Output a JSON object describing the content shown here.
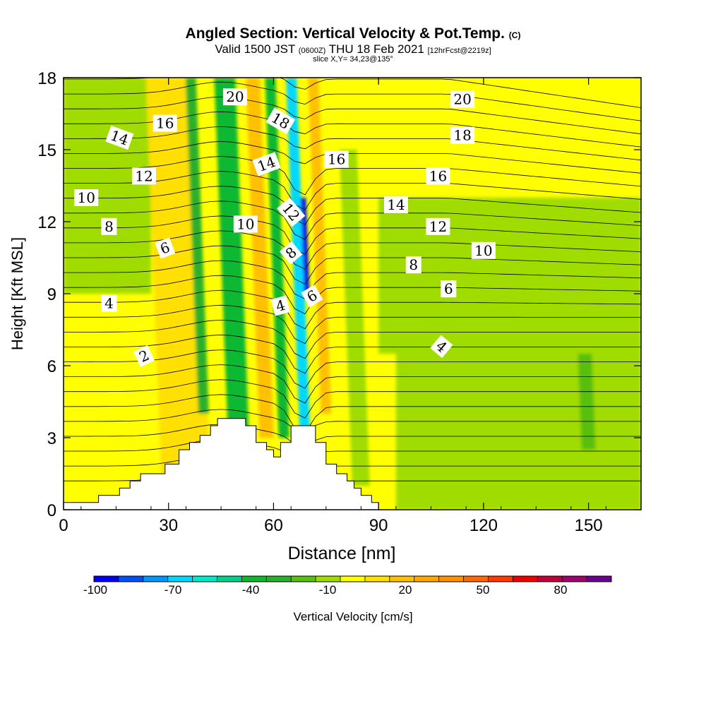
{
  "header": {
    "title": "Angled Section: Vertical Velocity & Pot.Temp.",
    "title_mark": "(C)",
    "valid_prefix": "Valid 1500 JST",
    "valid_utc": "(0600Z)",
    "valid_date": "THU 18 Feb 2021",
    "forecast": "[12hrFcst@2219z]",
    "slice": "slice X,Y= 34,23@135°"
  },
  "chart_data": {
    "type": "heatmap",
    "title": "Angled Section: Vertical Velocity & Pot.Temp.",
    "xlabel": "Distance [nm]",
    "ylabel": "Height [Kft MSL]",
    "xlim": [
      0,
      165
    ],
    "ylim": [
      0,
      18
    ],
    "xticks": [
      0,
      30,
      60,
      90,
      120,
      150
    ],
    "yticks": [
      0,
      3,
      6,
      9,
      12,
      15,
      18
    ],
    "colorbar": {
      "label": "Vertical Velocity [cm/s]",
      "tick_labels": [
        "-100",
        "-70",
        "-40",
        "-10",
        "20",
        "50",
        "80"
      ],
      "tick_values": [
        -100,
        -70,
        -40,
        -10,
        20,
        50,
        80
      ],
      "levels": [
        -100,
        -90,
        -80,
        -70,
        -60,
        -50,
        -40,
        -30,
        -20,
        -10,
        0,
        10,
        20,
        30,
        40,
        50,
        60,
        70,
        80,
        90,
        100
      ],
      "colors": [
        "#0000ee",
        "#0050f5",
        "#0096ff",
        "#00d8ff",
        "#00e8c8",
        "#00d08c",
        "#10b830",
        "#2ab02a",
        "#58c010",
        "#a0dc00",
        "#ffff00",
        "#ffe000",
        "#ffc000",
        "#ffa800",
        "#ff9000",
        "#ff6a00",
        "#ff3a00",
        "#ee0000",
        "#c00038",
        "#a00070",
        "#6a0090"
      ]
    },
    "vertical_velocity_features": [
      {
        "x_center": 35,
        "width_nm": 14,
        "y_range": [
          1,
          18
        ],
        "value": 15
      },
      {
        "x_center": 40,
        "width_nm": 3,
        "y_range": [
          4,
          18
        ],
        "value": -25
      },
      {
        "x_center": 50,
        "width_nm": 6,
        "y_range": [
          3,
          18
        ],
        "value": -35
      },
      {
        "x_center": 58,
        "width_nm": 4,
        "y_range": [
          3,
          18
        ],
        "value": 20
      },
      {
        "x_center": 63,
        "width_nm": 3,
        "y_range": [
          3,
          18
        ],
        "value": -35
      },
      {
        "x_center": 69,
        "width_nm": 3,
        "y_range": [
          3,
          18
        ],
        "value": -70
      },
      {
        "x_center": 69.5,
        "width_nm": 1.5,
        "y_range": [
          9,
          13
        ],
        "value": -100
      },
      {
        "x_center": 75,
        "width_nm": 3,
        "y_range": [
          4,
          18
        ],
        "value": 20
      },
      {
        "x_center": 85,
        "width_nm": 5,
        "y_range": [
          1,
          15
        ],
        "value": -10
      },
      {
        "x_center": 150,
        "width_nm": 4,
        "y_range": [
          2.5,
          6.5
        ],
        "value": -15
      }
    ],
    "terrain_nm_kft": [
      [
        0,
        0.3
      ],
      [
        10,
        0.3
      ],
      [
        10,
        0.6
      ],
      [
        16,
        0.6
      ],
      [
        16,
        0.9
      ],
      [
        19,
        0.9
      ],
      [
        19,
        1.2
      ],
      [
        22,
        1.2
      ],
      [
        22,
        1.5
      ],
      [
        29,
        1.5
      ],
      [
        29,
        1.9
      ],
      [
        33,
        1.9
      ],
      [
        33,
        2.5
      ],
      [
        36,
        2.5
      ],
      [
        36,
        2.8
      ],
      [
        39,
        2.8
      ],
      [
        39,
        3.1
      ],
      [
        42,
        3.1
      ],
      [
        42,
        3.5
      ],
      [
        44,
        3.5
      ],
      [
        44,
        3.8
      ],
      [
        52,
        3.8
      ],
      [
        52,
        3.5
      ],
      [
        55,
        3.5
      ],
      [
        55,
        2.8
      ],
      [
        58,
        2.8
      ],
      [
        58,
        2.5
      ],
      [
        60,
        2.5
      ],
      [
        60,
        2.2
      ],
      [
        62,
        2.2
      ],
      [
        62,
        2.8
      ],
      [
        65,
        2.8
      ],
      [
        65,
        3.5
      ],
      [
        72,
        3.5
      ],
      [
        72,
        2.8
      ],
      [
        75,
        2.8
      ],
      [
        75,
        1.9
      ],
      [
        78,
        1.9
      ],
      [
        78,
        1.5
      ],
      [
        81,
        1.5
      ],
      [
        81,
        1.2
      ],
      [
        83,
        1.2
      ],
      [
        83,
        0.9
      ],
      [
        85,
        0.9
      ],
      [
        85,
        0.6
      ],
      [
        88,
        0.6
      ],
      [
        88,
        0.3
      ],
      [
        90,
        0.3
      ],
      [
        90,
        0
      ],
      [
        0,
        0
      ]
    ],
    "pot_temp_labels": [
      {
        "text": "2",
        "x": 23,
        "y": 6.4,
        "rot": -25
      },
      {
        "text": "4",
        "x": 13,
        "y": 8.6,
        "rot": 0
      },
      {
        "text": "4",
        "x": 62,
        "y": 8.5,
        "rot": -15
      },
      {
        "text": "4",
        "x": 108,
        "y": 6.8,
        "rot": 40
      },
      {
        "text": "6",
        "x": 29,
        "y": 10.9,
        "rot": -20
      },
      {
        "text": "6",
        "x": 71,
        "y": 8.9,
        "rot": -30
      },
      {
        "text": "6",
        "x": 110,
        "y": 9.2,
        "rot": 0
      },
      {
        "text": "8",
        "x": 13,
        "y": 11.8,
        "rot": 0
      },
      {
        "text": "8",
        "x": 65,
        "y": 10.7,
        "rot": -40
      },
      {
        "text": "8",
        "x": 100,
        "y": 10.2,
        "rot": 0
      },
      {
        "text": "10",
        "x": 6.5,
        "y": 13.0,
        "rot": 0
      },
      {
        "text": "10",
        "x": 52,
        "y": 11.9,
        "rot": 0
      },
      {
        "text": "10",
        "x": 120,
        "y": 10.8,
        "rot": 0
      },
      {
        "text": "12",
        "x": 23,
        "y": 13.9,
        "rot": 0
      },
      {
        "text": "12",
        "x": 65,
        "y": 12.4,
        "rot": 50
      },
      {
        "text": "12",
        "x": 107,
        "y": 11.8,
        "rot": 0
      },
      {
        "text": "14",
        "x": 16,
        "y": 15.5,
        "rot": 20
      },
      {
        "text": "14",
        "x": 58,
        "y": 14.4,
        "rot": -20
      },
      {
        "text": "14",
        "x": 95,
        "y": 12.7,
        "rot": 0
      },
      {
        "text": "16",
        "x": 29,
        "y": 16.1,
        "rot": 0
      },
      {
        "text": "16",
        "x": 78,
        "y": 14.6,
        "rot": 0
      },
      {
        "text": "16",
        "x": 107,
        "y": 13.9,
        "rot": 0
      },
      {
        "text": "18",
        "x": 62,
        "y": 16.2,
        "rot": 30
      },
      {
        "text": "18",
        "x": 114,
        "y": 15.6,
        "rot": 0
      },
      {
        "text": "20",
        "x": 49,
        "y": 17.2,
        "rot": 0
      },
      {
        "text": "20",
        "x": 114,
        "y": 17.1,
        "rot": 0
      }
    ]
  }
}
